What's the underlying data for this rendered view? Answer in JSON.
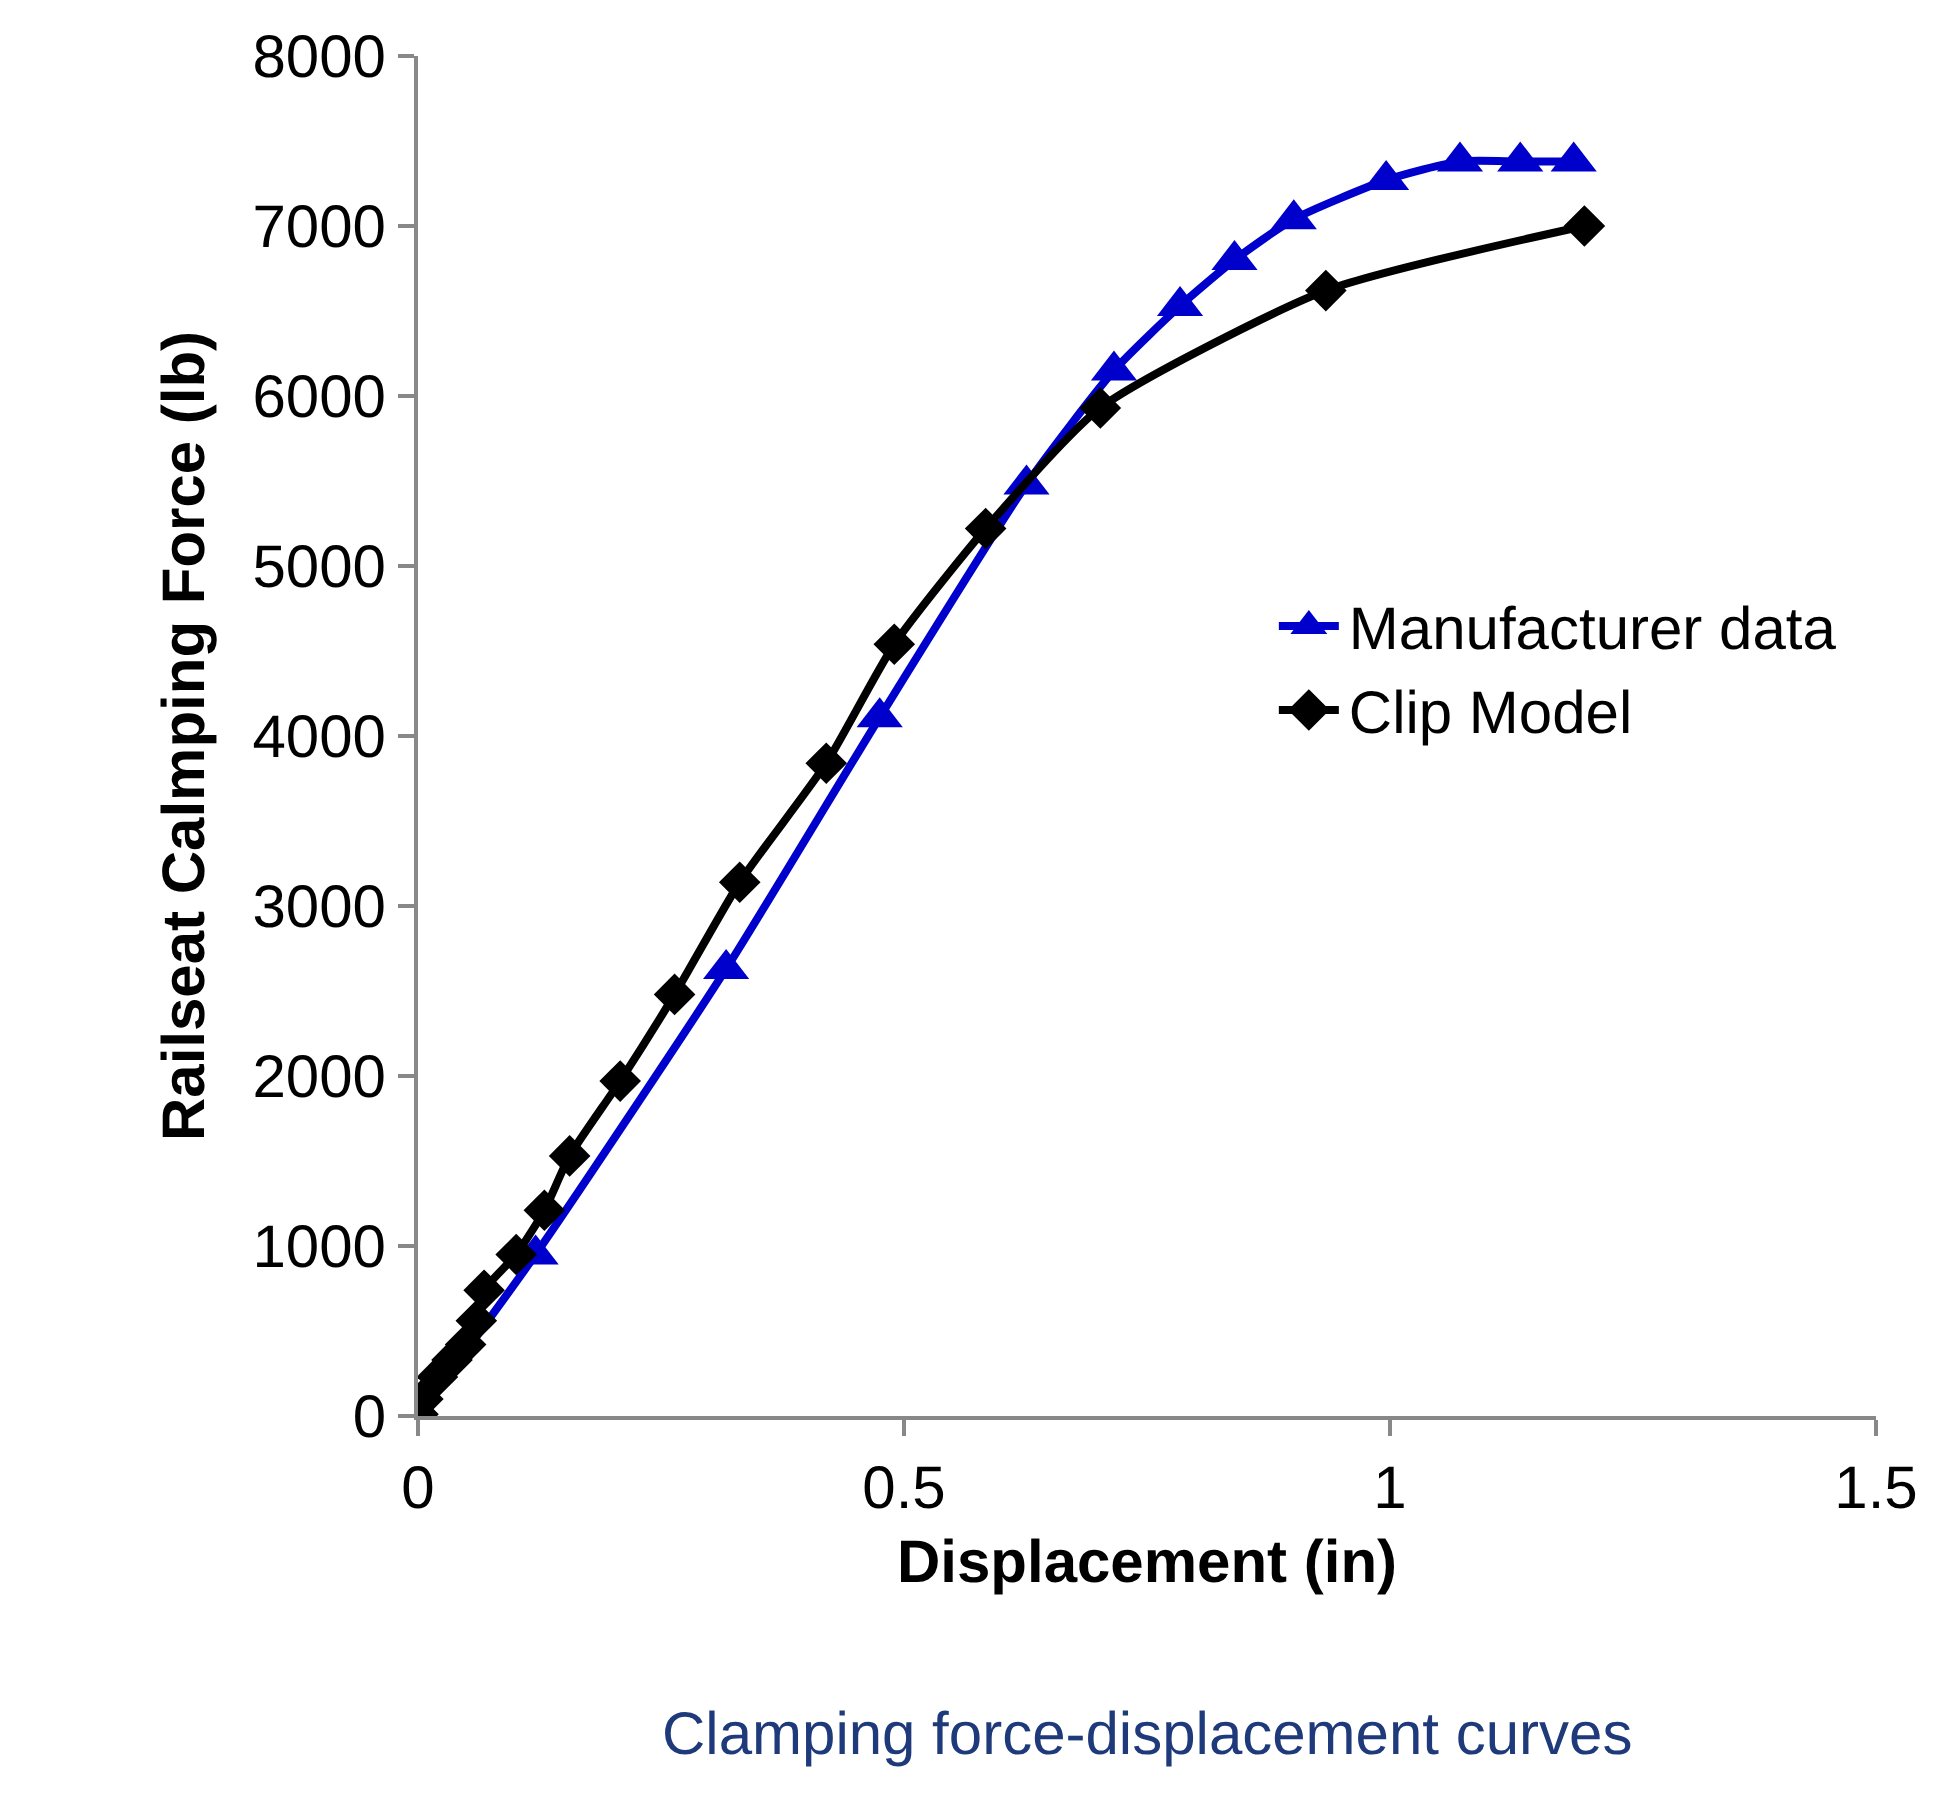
{
  "chart_data": {
    "type": "line",
    "xlabel": "Displacement (in)",
    "ylabel": "Railseat Calmping Force (lb)",
    "annotations": [
      "Clamping force-displacement curves"
    ],
    "xlim": [
      0,
      1.5
    ],
    "xticks": [
      0,
      0.5,
      1,
      1.5
    ],
    "ylim": [
      0,
      8000
    ],
    "yticks": [
      0,
      1000,
      2000,
      3000,
      4000,
      5000,
      6000,
      7000,
      8000
    ],
    "legend": "right",
    "line_style": "solid",
    "series": [
      {
        "name": "Manufacturer data",
        "color": "#0000cc",
        "marker": "triangle",
        "x": [
          0,
          0.121,
          0.317,
          0.475,
          0.626,
          0.716,
          0.784,
          0.84,
          0.901,
          0.996,
          1.072,
          1.134,
          1.189
        ],
        "values": [
          0,
          950,
          2630,
          4110,
          5480,
          6150,
          6530,
          6800,
          7040,
          7270,
          7380,
          7380,
          7380
        ]
      },
      {
        "name": "Clip Model",
        "color": "#000000",
        "marker": "diamond",
        "x": [
          0,
          0.005,
          0.02,
          0.035,
          0.049,
          0.06,
          0.068,
          0.101,
          0.13,
          0.156,
          0.208,
          0.264,
          0.331,
          0.42,
          0.49,
          0.584,
          0.702,
          0.934,
          1.2
        ],
        "values": [
          10,
          100,
          230,
          330,
          420,
          560,
          740,
          950,
          1210,
          1530,
          1970,
          2480,
          3140,
          3840,
          4540,
          5220,
          5930,
          6620,
          7000
        ]
      }
    ]
  }
}
